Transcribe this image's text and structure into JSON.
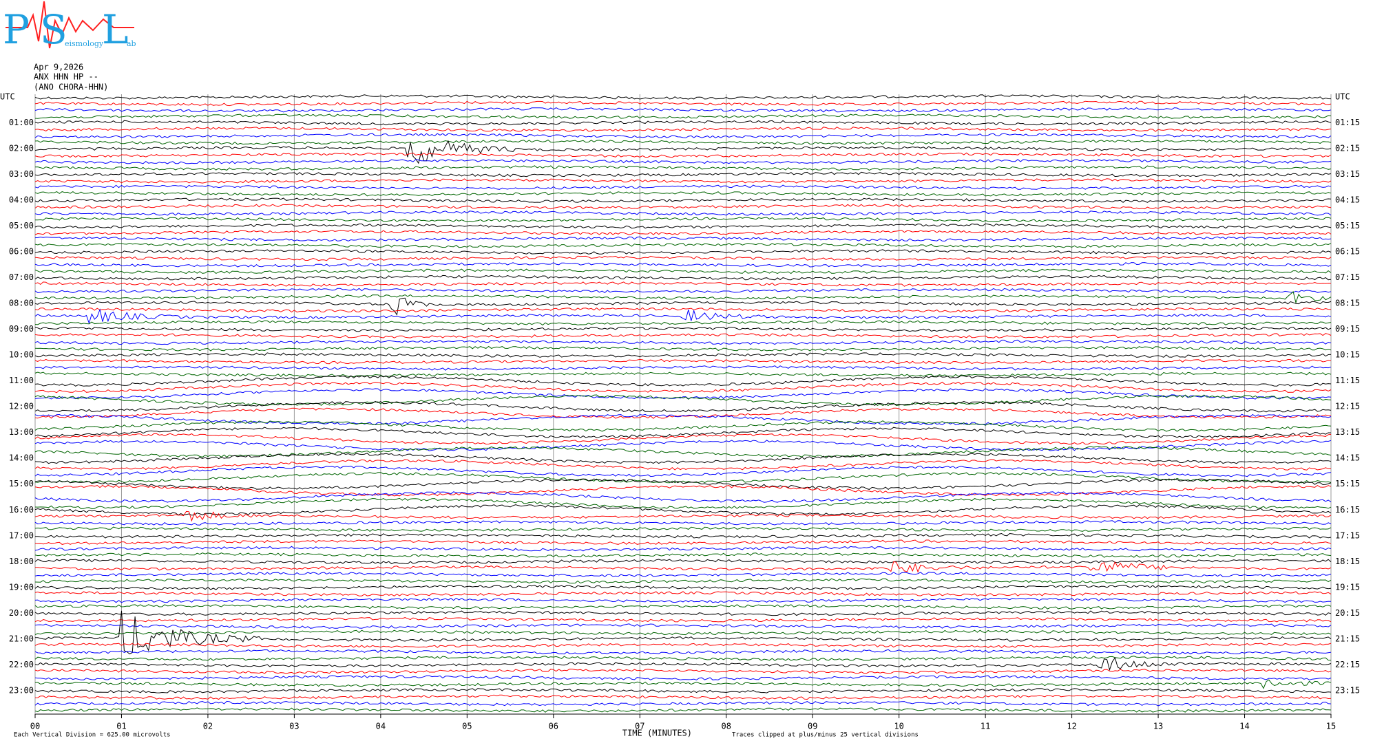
{
  "chart_data": {
    "type": "helicorder",
    "logo": {
      "letters": [
        "P",
        "S",
        "L"
      ],
      "words": [
        "eismology",
        "ab"
      ]
    },
    "title_lines": [
      "Apr 9,2026",
      "ANX HHN HP --",
      "(ANO CHORA-HHN)"
    ],
    "left_labels": [
      "UTC",
      "01:00",
      "02:00",
      "03:00",
      "04:00",
      "05:00",
      "06:00",
      "07:00",
      "08:00",
      "09:00",
      "10:00",
      "11:00",
      "12:00",
      "13:00",
      "14:00",
      "15:00",
      "16:00",
      "17:00",
      "18:00",
      "19:00",
      "20:00",
      "21:00",
      "22:00",
      "23:00"
    ],
    "right_labels": [
      "UTC",
      "01:15",
      "02:15",
      "03:15",
      "04:15",
      "05:15",
      "06:15",
      "07:15",
      "08:15",
      "09:15",
      "10:15",
      "11:15",
      "12:15",
      "13:15",
      "14:15",
      "15:15",
      "16:15",
      "17:15",
      "18:15",
      "19:15",
      "20:15",
      "21:15",
      "22:15",
      "23:15"
    ],
    "trace_offsets": [
      -9548,
      -9535,
      -9591,
      -9516,
      -9395,
      -9443,
      -9481,
      -9503,
      -9438,
      -9474,
      -9520,
      -9505,
      -9489,
      -9564,
      -9544,
      -9584,
      -9530,
      -9619,
      -9684,
      -9497,
      -9561,
      -9614,
      -9452,
      -9372,
      -9436,
      -9403,
      -9377,
      -9683,
      -9432,
      -9524,
      -9363,
      -9217,
      -9146,
      -9184,
      -9327,
      -9119,
      -9121,
      -9080,
      -8978,
      -8868,
      -9086,
      -9138,
      -9992,
      -8895,
      -9726,
      -9417,
      -9280,
      -9719,
      -9158,
      -9278,
      -9342,
      -9458,
      -9284,
      -9447,
      -9467,
      -9360,
      -8801,
      -8934,
      -8988,
      -10639,
      -8457,
      -8464,
      -9773,
      -9506,
      -9583,
      -9615,
      -9659,
      -9764,
      -9711,
      -9688,
      -9654,
      -9659,
      -9693,
      -9675,
      -9765,
      -9672,
      -9596,
      -9633,
      -9610,
      -9667,
      -9629,
      -9695,
      -9630,
      -9647,
      -9605,
      -9588,
      -9635,
      -9573,
      -9576,
      -9584,
      -9572,
      -9576,
      -9583,
      -9580,
      -9587,
      -9595
    ],
    "trace_colors": [
      "#000000",
      "#ff0000",
      "#0000ff",
      "#006400"
    ],
    "xlim": [
      0,
      15
    ],
    "xticks": [
      {
        "value": 0,
        "label": "00"
      },
      {
        "value": 1,
        "label": "01"
      },
      {
        "value": 2,
        "label": "02"
      },
      {
        "value": 3,
        "label": "03"
      },
      {
        "value": 4,
        "label": "04"
      },
      {
        "value": 5,
        "label": "05"
      },
      {
        "value": 6,
        "label": "06"
      },
      {
        "value": 7,
        "label": "07"
      },
      {
        "value": 8,
        "label": "08"
      },
      {
        "value": 9,
        "label": "09"
      },
      {
        "value": 10,
        "label": "10"
      },
      {
        "value": 11,
        "label": "11"
      },
      {
        "value": 12,
        "label": "12"
      },
      {
        "value": 13,
        "label": "13"
      },
      {
        "value": 14,
        "label": "14"
      },
      {
        "value": 15,
        "label": "15"
      }
    ],
    "xlabel": "TIME (MINUTES)",
    "scale_note": "Each Vertical Division =  625.00 microvolts",
    "clip_note": "Traces clipped at plus/minus 25 vertical divisions",
    "grid": true
  }
}
